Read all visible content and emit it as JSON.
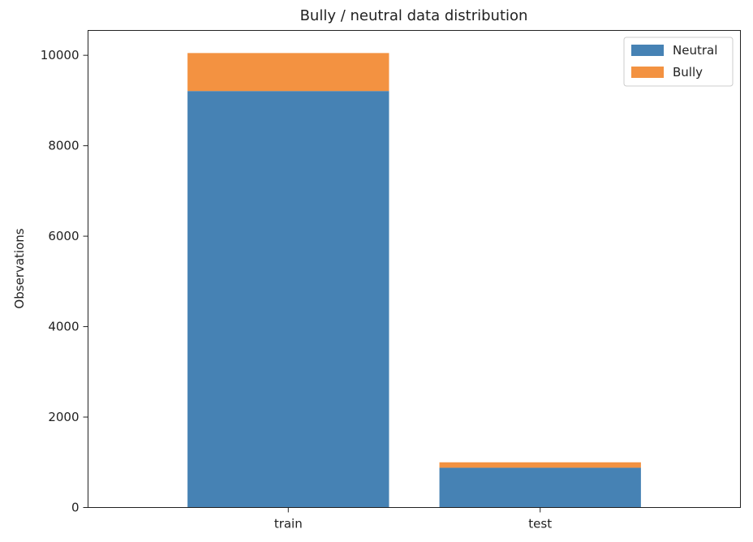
{
  "chart_data": {
    "type": "bar",
    "stacked": true,
    "title": "Bully / neutral data distribution",
    "xlabel": "",
    "ylabel": "Observations",
    "categories": [
      "train",
      "test"
    ],
    "series": [
      {
        "name": "Neutral",
        "color": "#4682b4",
        "values": [
          9210,
          880
        ]
      },
      {
        "name": "Bully",
        "color": "#f39241",
        "values": [
          840,
          120
        ]
      }
    ],
    "ylim": [
      0,
      10550
    ],
    "yticks": [
      0,
      2000,
      4000,
      6000,
      8000,
      10000
    ],
    "grid": false,
    "legend": "top-right"
  }
}
